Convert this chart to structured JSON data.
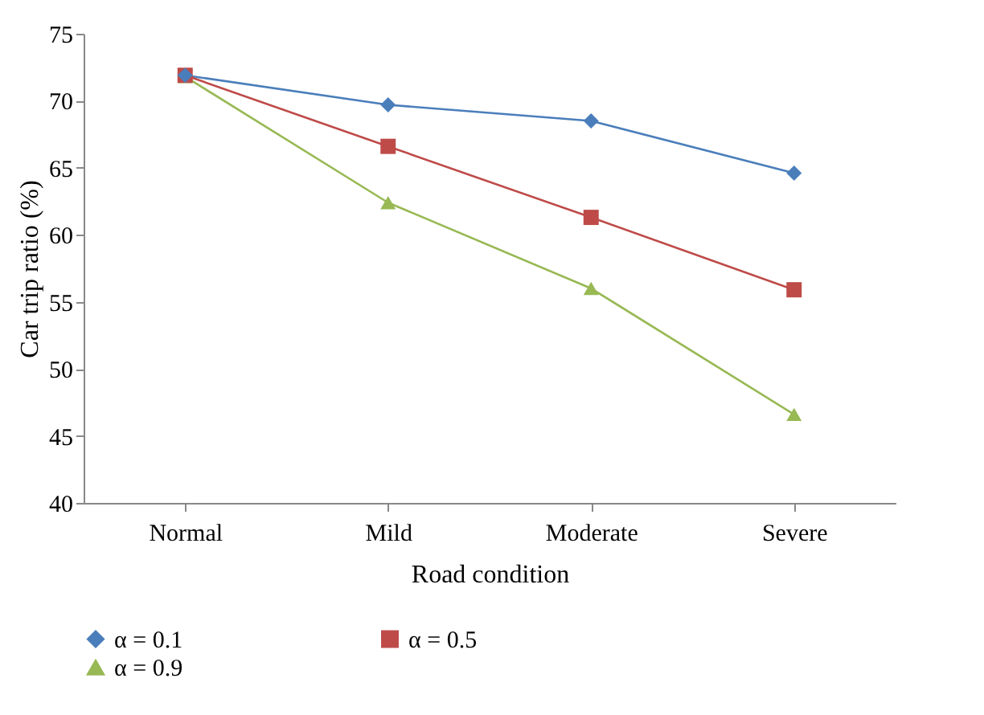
{
  "chart_data": {
    "type": "line",
    "xlabel": "Road condition",
    "ylabel": "Car trip ratio (%)",
    "categories": [
      "Normal",
      "Mild",
      "Moderate",
      "Severe"
    ],
    "series": [
      {
        "name": "α = 0.1",
        "color": "#4a7ebb",
        "marker": "diamond",
        "values": [
          71.9,
          69.7,
          68.5,
          64.6
        ]
      },
      {
        "name": "α = 0.5",
        "color": "#be4b48",
        "marker": "square",
        "values": [
          71.9,
          66.6,
          61.3,
          55.9
        ]
      },
      {
        "name": "α = 0.9",
        "color": "#98b954",
        "marker": "triangle",
        "values": [
          71.8,
          62.4,
          56.0,
          46.6
        ]
      }
    ],
    "ylim": [
      40,
      75
    ],
    "yticks": [
      40,
      45,
      50,
      55,
      60,
      65,
      70,
      75
    ],
    "grid": false,
    "legend": "bottom"
  }
}
